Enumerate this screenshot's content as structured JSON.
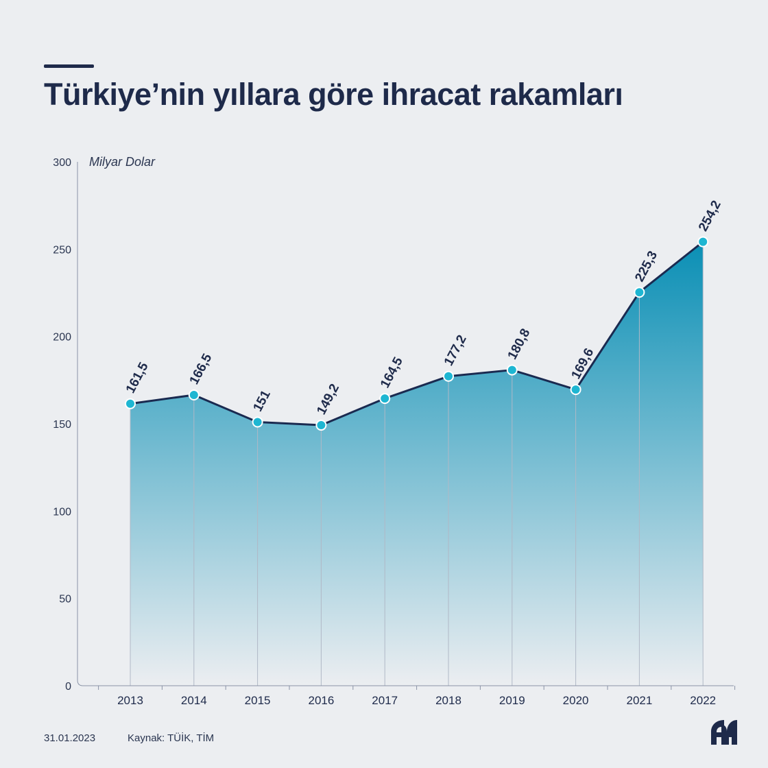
{
  "title": "Türkiye’nin yıllara göre ihracat rakamları",
  "footer": {
    "date": "31.01.2023",
    "source": "Kaynak: TÜİK, TİM"
  },
  "colors": {
    "line": "#1a2a50",
    "marker": "#1eb6d2",
    "area_top": "#0a8fb5",
    "area_bottom": "#eceef1",
    "axis": "#8a93a6"
  },
  "chart_data": {
    "type": "area",
    "unit_label": "Milyar Dolar",
    "categories": [
      "2013",
      "2014",
      "2015",
      "2016",
      "2017",
      "2018",
      "2019",
      "2020",
      "2021",
      "2022"
    ],
    "values": [
      161.5,
      166.5,
      151,
      149.2,
      164.5,
      177.2,
      180.8,
      169.6,
      225.3,
      254.2
    ],
    "value_labels": [
      "161,5",
      "166,5",
      "151",
      "149,2",
      "164,5",
      "177,2",
      "180,8",
      "169,6",
      "225,3",
      "254,2"
    ],
    "ylim": [
      0,
      300
    ],
    "y_ticks": [
      0,
      50,
      100,
      150,
      200,
      250,
      300
    ],
    "grid": false
  }
}
